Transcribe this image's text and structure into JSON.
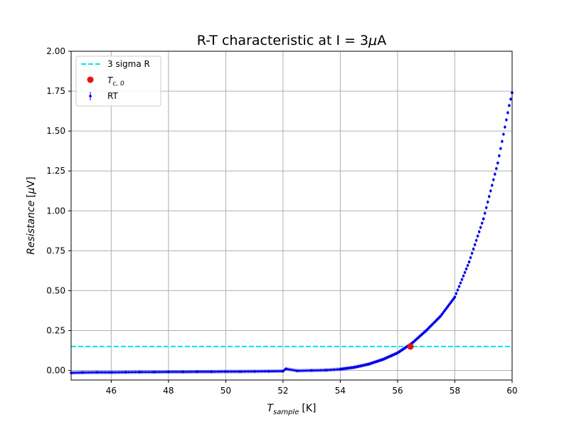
{
  "chart_data": {
    "type": "scatter",
    "title_prefix": "R-T characteristic at I = 3",
    "title_mu": "μ",
    "title_suffix": "A",
    "xlabel_main": "T",
    "xlabel_sub": "sample",
    "xlabel_unit": "[K]",
    "ylabel_main": "Resistance",
    "ylabel_unit_open": "[",
    "ylabel_mu": "μ",
    "ylabel_unit_close": "V]",
    "xlim": [
      44.6,
      60.0
    ],
    "ylim": [
      -0.06,
      2.0
    ],
    "xticks": [
      "46",
      "48",
      "50",
      "52",
      "54",
      "56",
      "58",
      "60"
    ],
    "yticks": [
      "0.00",
      "0.25",
      "0.50",
      "0.75",
      "1.00",
      "1.25",
      "1.50",
      "1.75",
      "2.00"
    ],
    "grid": true,
    "legend_position": "top-left",
    "threshold": {
      "name": "3 sigma R",
      "y": 0.15,
      "color": "#00e5ee",
      "style": "dashed"
    },
    "tc_point": {
      "name_main": "T",
      "name_sub": "c, 0",
      "x": 56.45,
      "y": 0.15,
      "color": "#e8140e"
    },
    "series": [
      {
        "name": "RT",
        "color": "#0000ee",
        "x": [
          44.6,
          45.0,
          45.5,
          46.0,
          46.5,
          47.0,
          47.5,
          48.0,
          48.5,
          49.0,
          49.5,
          50.0,
          50.5,
          51.0,
          51.5,
          52.0,
          52.1,
          52.5,
          53.0,
          53.5,
          54.0,
          54.5,
          55.0,
          55.5,
          56.0,
          56.5,
          57.0,
          57.5,
          58.0,
          58.5,
          59.0,
          59.5,
          59.9,
          60.0
        ],
        "y": [
          -0.015,
          -0.013,
          -0.012,
          -0.012,
          -0.011,
          -0.01,
          -0.01,
          -0.009,
          -0.009,
          -0.008,
          -0.008,
          -0.007,
          -0.007,
          -0.006,
          -0.005,
          -0.004,
          0.01,
          -0.002,
          0.0,
          0.002,
          0.008,
          0.02,
          0.04,
          0.07,
          0.11,
          0.17,
          0.25,
          0.34,
          0.46,
          0.68,
          0.95,
          1.3,
          1.66,
          1.74
        ]
      }
    ]
  }
}
